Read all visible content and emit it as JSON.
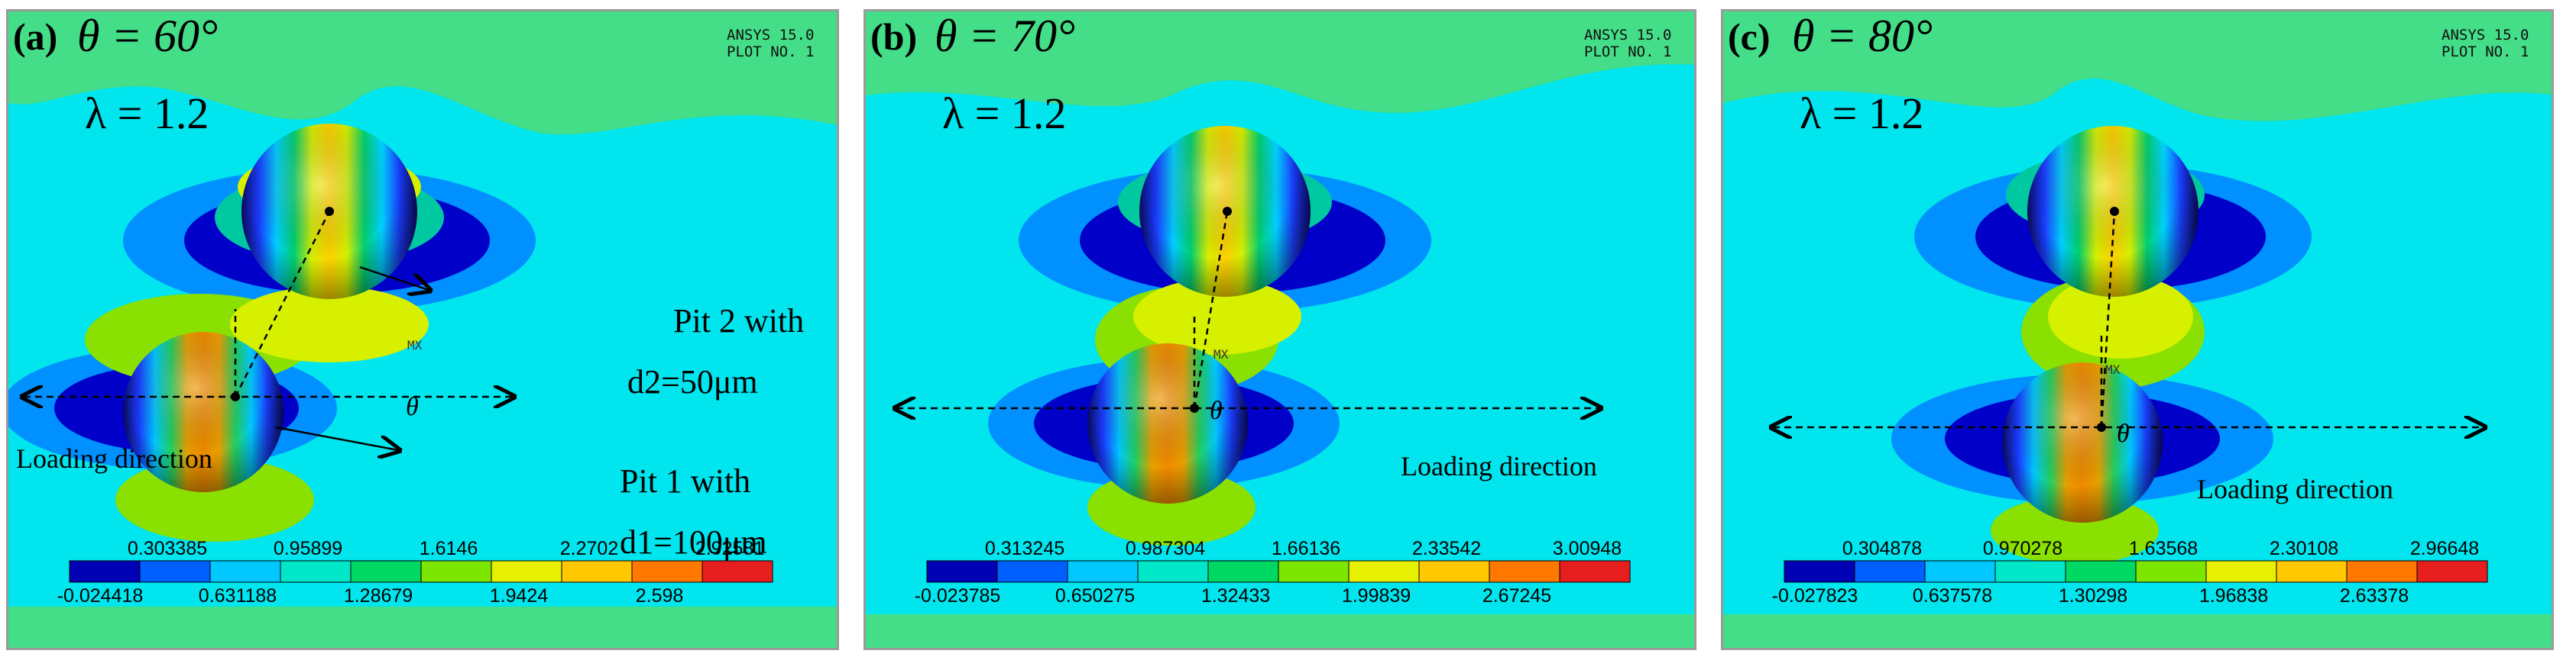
{
  "panels": [
    {
      "label": "(a)",
      "theta_line": "θ = 60°",
      "lambda_line": "λ = 1.2",
      "ansys_l1": "ANSYS 15.0",
      "ansys_l2": "PLOT NO.  1",
      "theta_symbol": "θ",
      "mx": "MX",
      "loading_direction": "Loading direction",
      "pit2_l1": "Pit 2 with",
      "pit2_l2": "d2=50μm",
      "pit1_l1": "Pit 1 with",
      "pit1_l2": "d1=100μm",
      "colorbar_top": [
        "0.303385",
        "0.95899",
        "1.6146",
        "2.2702",
        "2.92581"
      ],
      "colorbar_bottom": [
        "-0.024418",
        "0.631188",
        "1.28679",
        "1.9424",
        "2.598"
      ]
    },
    {
      "label": "(b)",
      "theta_line": "θ = 70°",
      "lambda_line": "λ = 1.2",
      "ansys_l1": "ANSYS 15.0",
      "ansys_l2": "PLOT NO.  1",
      "theta_symbol": "θ",
      "mx": "MX",
      "loading_direction": "Loading direction",
      "colorbar_top": [
        "0.313245",
        "0.987304",
        "1.66136",
        "2.33542",
        "3.00948"
      ],
      "colorbar_bottom": [
        "-0.023785",
        "0.650275",
        "1.32433",
        "1.99839",
        "2.67245"
      ]
    },
    {
      "label": "(c)",
      "theta_line": "θ = 80°",
      "lambda_line": "λ = 1.2",
      "ansys_l1": "ANSYS 15.0",
      "ansys_l2": "PLOT NO.  1",
      "theta_symbol": "θ",
      "mx": "MX",
      "loading_direction": "Loading direction",
      "colorbar_top": [
        "0.304878",
        "0.970278",
        "1.63568",
        "2.30108",
        "2.96648"
      ],
      "colorbar_bottom": [
        "-0.027823",
        "0.637578",
        "1.30298",
        "1.96838",
        "2.63378"
      ]
    }
  ],
  "colors": {
    "background_field": "#00e5ee",
    "upper_field": "#44dd88",
    "colorbar": [
      "#0000b4",
      "#0060ff",
      "#00c8ff",
      "#00e6c8",
      "#00d864",
      "#7ce600",
      "#e6f000",
      "#ffc800",
      "#ff7800",
      "#e61e1e"
    ]
  }
}
